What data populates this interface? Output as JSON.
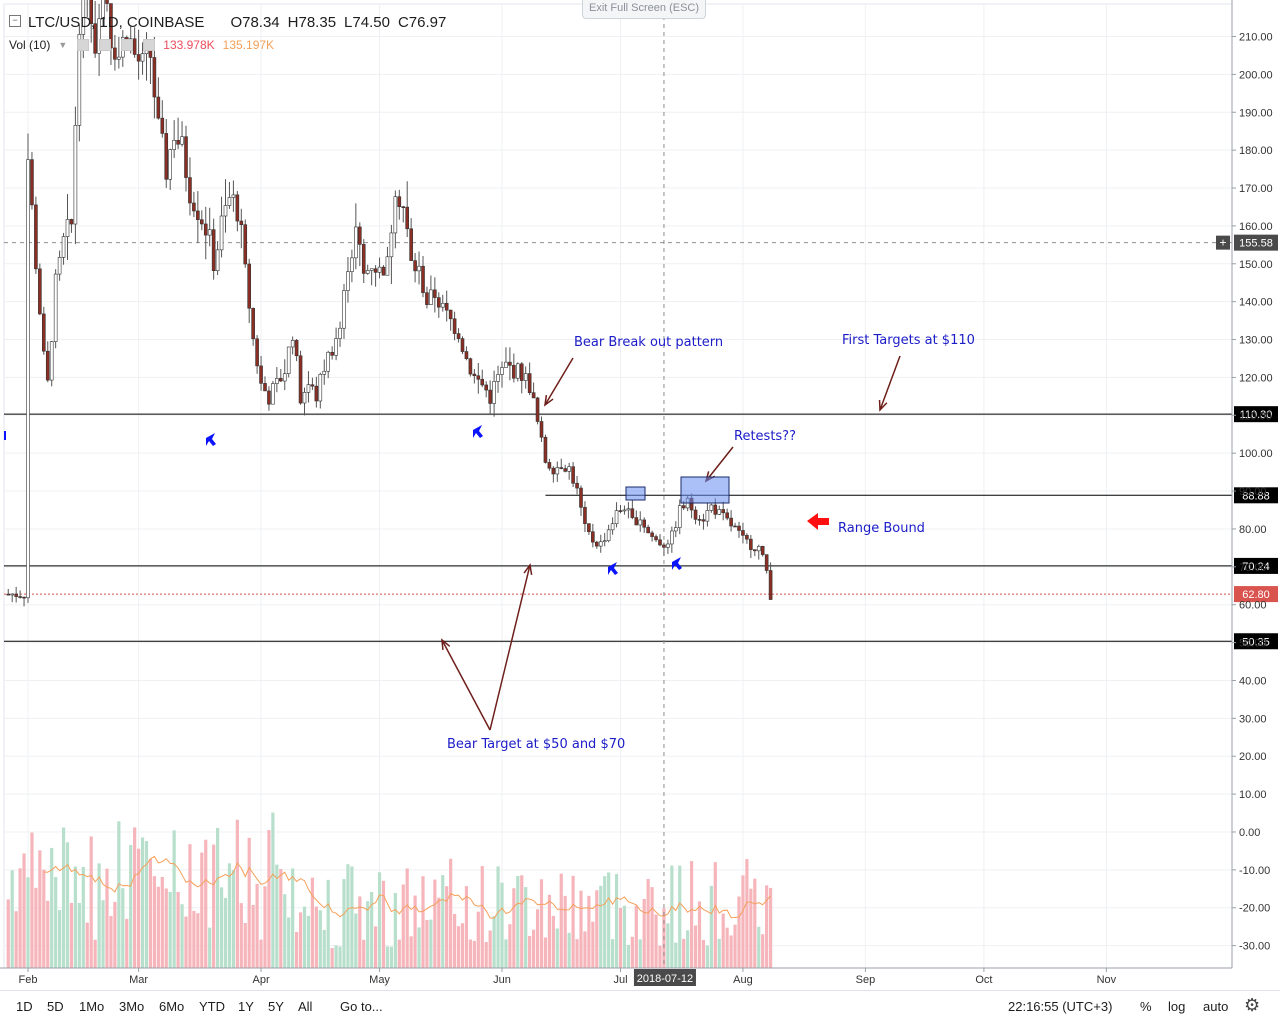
{
  "header": {
    "symbol": "LTC/USD, 1D, COINBASE",
    "o_label": "O",
    "o_value": "78.34",
    "h_label": "H",
    "h_value": "78.35",
    "l_label": "L",
    "l_value": "74.50",
    "c_label": "C",
    "c_value": "76.97",
    "vol_label": "Vol (10)",
    "vol_value_1": "133.978K",
    "vol_value_2": "135.197K",
    "exit_fullscreen": "Exit Full Screen (ESC)"
  },
  "colors": {
    "up": "#53b987",
    "down": "#eb4d5c",
    "candle_body": "#8b2e24",
    "annotation_text": "#1c1cc8",
    "arrow_brown": "#6e1f1a",
    "red_arrow": "#ff1010",
    "blue_arrow": "#0a14ff",
    "vol_up": "#b7dfcc",
    "vol_down": "#f5b5bb",
    "vol_ma": "#f5a05a",
    "crosshair": "#8e8e8e",
    "last_price": "#d9534f"
  },
  "bottom_bar": {
    "ranges": [
      "1D",
      "5D",
      "1Mo",
      "3Mo",
      "6Mo",
      "YTD",
      "1Y",
      "5Y",
      "All"
    ],
    "goto": "Go to...",
    "time": "22:16:55 (UTC+3)",
    "percent": "%",
    "log": "log",
    "auto": "auto"
  },
  "chart_data": {
    "type": "candlestick",
    "title": "LTC/USD, 1D, COINBASE",
    "y_ticks": [
      210,
      200,
      190,
      180,
      170,
      160,
      150,
      140,
      130,
      120,
      110,
      100,
      90,
      80,
      70,
      60,
      50,
      40,
      30,
      20,
      10,
      0,
      -10,
      -20,
      -30
    ],
    "y_tick_labels": [
      "210.00",
      "200.00",
      "190.00",
      "180.00",
      "170.00",
      "160.00",
      "150.00",
      "140.00",
      "130.00",
      "120.00",
      "110.00",
      "100.00",
      "90.00",
      "80.00",
      "70.00",
      "60.00",
      "50.00",
      "40.00",
      "30.00",
      "20.00",
      "10.00",
      "0.00",
      "-10.00",
      "-20.00",
      "-30.00"
    ],
    "ylim": [
      -36,
      217
    ],
    "x_tick_labels": [
      "Feb",
      "Mar",
      "Apr",
      "May",
      "Jun",
      "Jul",
      "Aug",
      "Sep",
      "Oct",
      "Nov"
    ],
    "x_tick_dates": [
      "2018-02-01",
      "2018-03-01",
      "2018-04-01",
      "2018-05-01",
      "2018-06-01",
      "2018-07-01",
      "2018-08-01",
      "2018-09-01",
      "2018-10-01",
      "2018-11-01"
    ],
    "crosshair_date": "2018-07-12",
    "crosshair_price": 155.58,
    "levels": [
      {
        "value": 110.3,
        "label": "110.30"
      },
      {
        "value": 88.88,
        "label": "88.88"
      },
      {
        "value": 70.24,
        "label": "70.24"
      },
      {
        "value": 50.35,
        "label": "50.35"
      }
    ],
    "last_price": {
      "value": 62.8,
      "label": "62.80"
    },
    "crosshair_label": "155.58",
    "annotations": [
      {
        "text": "Bear Break out pattern"
      },
      {
        "text": "First Targets at $110"
      },
      {
        "text": "Retests??"
      },
      {
        "text": "Range Bound"
      },
      {
        "text": "Bear Target at $50 and $70"
      }
    ],
    "price_path": [
      [
        "2018-02-01",
        178
      ],
      [
        "2018-02-03",
        150
      ],
      [
        "2018-02-05",
        125
      ],
      [
        "2018-02-06",
        118
      ],
      [
        "2018-02-08",
        145
      ],
      [
        "2018-02-10",
        155
      ],
      [
        "2018-02-12",
        160
      ],
      [
        "2018-02-14",
        215
      ],
      [
        "2018-02-16",
        225
      ],
      [
        "2018-02-18",
        208
      ],
      [
        "2018-02-20",
        230
      ],
      [
        "2018-02-22",
        210
      ],
      [
        "2018-02-24",
        205
      ],
      [
        "2018-02-26",
        212
      ],
      [
        "2018-02-28",
        205
      ],
      [
        "2018-03-02",
        202
      ],
      [
        "2018-03-04",
        205
      ],
      [
        "2018-03-06",
        185
      ],
      [
        "2018-03-08",
        175
      ],
      [
        "2018-03-10",
        185
      ],
      [
        "2018-03-12",
        180
      ],
      [
        "2018-03-14",
        170
      ],
      [
        "2018-03-16",
        165
      ],
      [
        "2018-03-18",
        160
      ],
      [
        "2018-03-20",
        150
      ],
      [
        "2018-03-22",
        160
      ],
      [
        "2018-03-24",
        167
      ],
      [
        "2018-03-26",
        165
      ],
      [
        "2018-03-28",
        148
      ],
      [
        "2018-03-30",
        130
      ],
      [
        "2018-04-01",
        118
      ],
      [
        "2018-04-03",
        115
      ],
      [
        "2018-04-05",
        118
      ],
      [
        "2018-04-07",
        122
      ],
      [
        "2018-04-09",
        132
      ],
      [
        "2018-04-11",
        115
      ],
      [
        "2018-04-13",
        118
      ],
      [
        "2018-04-15",
        115
      ],
      [
        "2018-04-17",
        123
      ],
      [
        "2018-04-19",
        128
      ],
      [
        "2018-04-21",
        133
      ],
      [
        "2018-04-23",
        150
      ],
      [
        "2018-04-25",
        158
      ],
      [
        "2018-04-27",
        147
      ],
      [
        "2018-04-29",
        150
      ],
      [
        "2018-05-01",
        148
      ],
      [
        "2018-05-03",
        150
      ],
      [
        "2018-05-05",
        172
      ],
      [
        "2018-05-07",
        165
      ],
      [
        "2018-05-09",
        150
      ],
      [
        "2018-05-11",
        148
      ],
      [
        "2018-05-13",
        140
      ],
      [
        "2018-05-15",
        142
      ],
      [
        "2018-05-17",
        138
      ],
      [
        "2018-05-19",
        135
      ],
      [
        "2018-05-21",
        132
      ],
      [
        "2018-05-23",
        125
      ],
      [
        "2018-05-25",
        120
      ],
      [
        "2018-05-27",
        118
      ],
      [
        "2018-05-29",
        115
      ],
      [
        "2018-05-31",
        120
      ],
      [
        "2018-06-02",
        123
      ],
      [
        "2018-06-04",
        122
      ],
      [
        "2018-06-06",
        121
      ],
      [
        "2018-06-08",
        118
      ],
      [
        "2018-06-10",
        108
      ],
      [
        "2018-06-12",
        98
      ],
      [
        "2018-06-14",
        96
      ],
      [
        "2018-06-16",
        97
      ],
      [
        "2018-06-18",
        96
      ],
      [
        "2018-06-20",
        90
      ],
      [
        "2018-06-22",
        80
      ],
      [
        "2018-06-24",
        77
      ],
      [
        "2018-06-26",
        76
      ],
      [
        "2018-06-28",
        80
      ],
      [
        "2018-06-30",
        84
      ],
      [
        "2018-07-02",
        86
      ],
      [
        "2018-07-04",
        82
      ],
      [
        "2018-07-06",
        83
      ],
      [
        "2018-07-08",
        79
      ],
      [
        "2018-07-10",
        77
      ],
      [
        "2018-07-12",
        76
      ],
      [
        "2018-07-14",
        78
      ],
      [
        "2018-07-16",
        85
      ],
      [
        "2018-07-18",
        87
      ],
      [
        "2018-07-20",
        84
      ],
      [
        "2018-07-22",
        83
      ],
      [
        "2018-07-24",
        86
      ],
      [
        "2018-07-26",
        84
      ],
      [
        "2018-07-28",
        82
      ],
      [
        "2018-07-30",
        80
      ],
      [
        "2018-08-01",
        77
      ],
      [
        "2018-08-03",
        76
      ],
      [
        "2018-08-05",
        75
      ],
      [
        "2018-08-07",
        69
      ],
      [
        "2018-08-08",
        62.8
      ]
    ]
  }
}
